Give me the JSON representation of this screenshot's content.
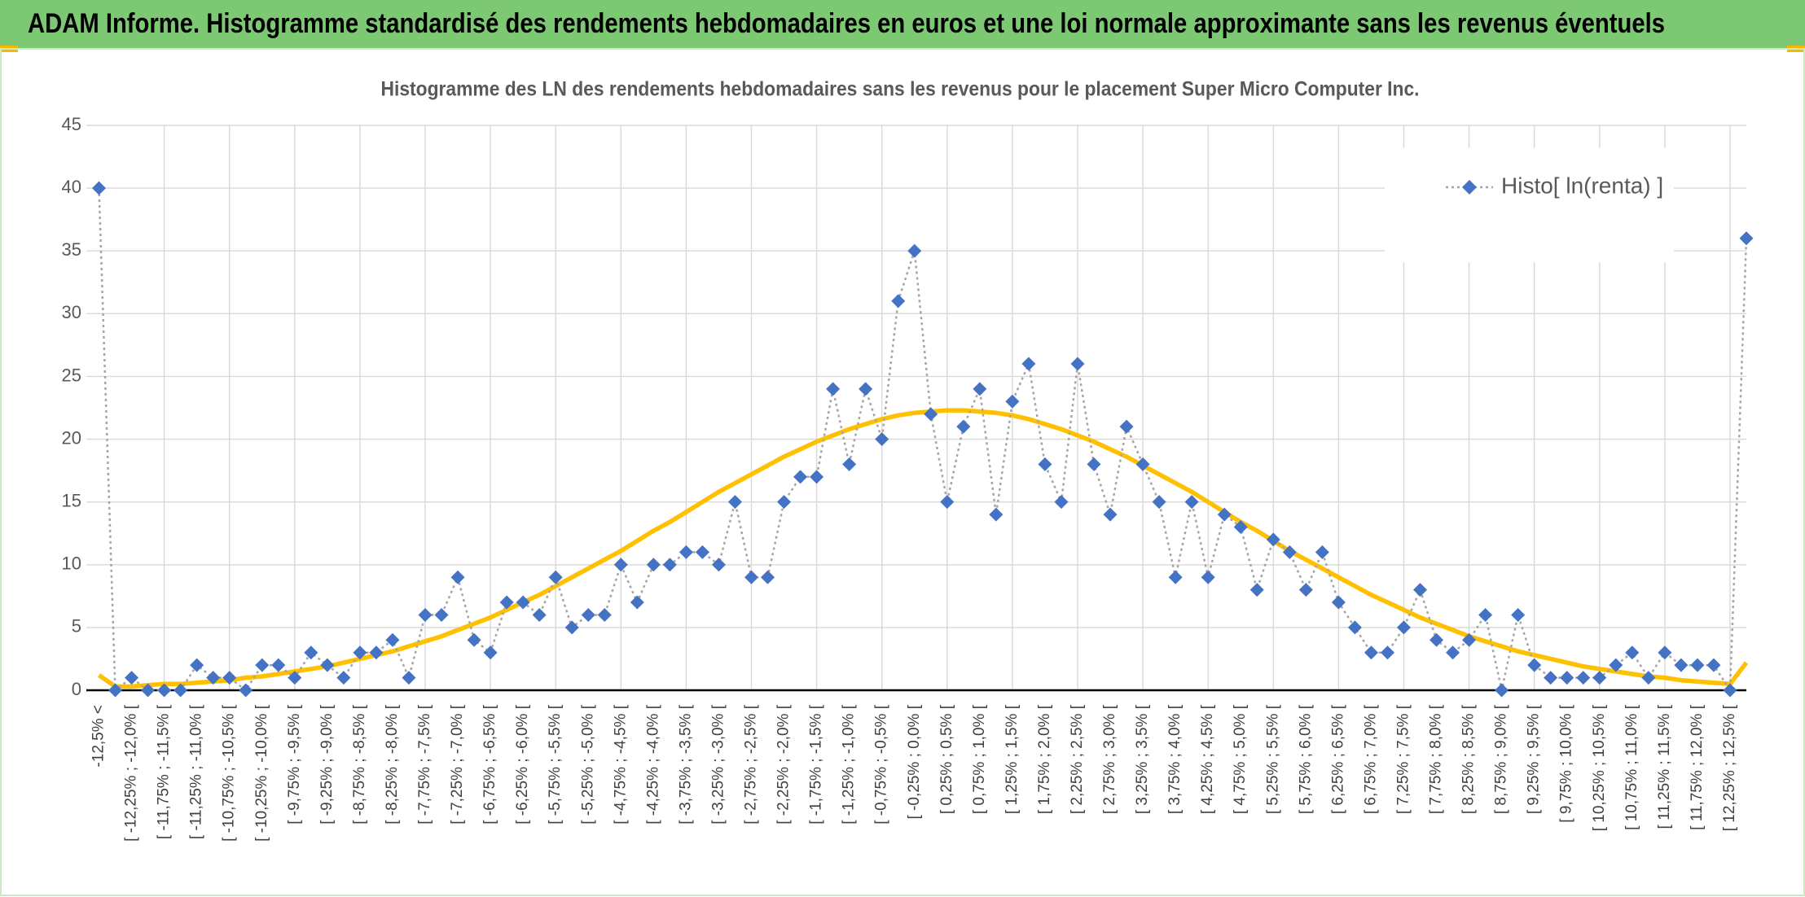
{
  "header": {
    "title": "ADAM Informe. Histogramme standardisé des rendements hebdomadaires en euros et une loi normale approximante sans les revenus éventuels"
  },
  "chart_data": {
    "type": "line",
    "title": "Histogramme des LN des rendements hebdomadaires sans les revenus pour le placement Super Micro Computer Inc.",
    "categories": [
      "-12,5% <",
      null,
      "[ -12,25% ; -12,0% [",
      null,
      "[ -11,75% ; -11,5% [",
      null,
      "[ -11,25% ; -11,0% [",
      null,
      "[ -10,75% ; -10,5% [",
      null,
      "[ -10,25% ; -10,0% [",
      null,
      "[ -9,75% ; -9,5% [",
      null,
      "[ -9,25% ; -9,0% [",
      null,
      "[ -8,75% ; -8,5% [",
      null,
      "[ -8,25% ; -8,0% [",
      null,
      "[ -7,75% ; -7,5% [",
      null,
      "[ -7,25% ; -7,0% [",
      null,
      "[ -6,75% ; -6,5% [",
      null,
      "[ -6,25% ; -6,0% [",
      null,
      "[ -5,75% ; -5,5% [",
      null,
      "[ -5,25% ; -5,0% [",
      null,
      "[ -4,75% ; -4,5% [",
      null,
      "[ -4,25% ; -4,0% [",
      null,
      "[ -3,75% ; -3,5% [",
      null,
      "[ -3,25% ; -3,0% [",
      null,
      "[ -2,75% ; -2,5% [",
      null,
      "[ -2,25% ; -2,0% [",
      null,
      "[ -1,75% ; -1,5% [",
      null,
      "[ -1,25% ; -1,0% [",
      null,
      "[ -0,75% ; -0,5% [",
      null,
      "[ -0,25% ; 0,0% [",
      null,
      "[ 0,25% ; 0,5% [",
      null,
      "[ 0,75% ; 1,0% [",
      null,
      "[ 1,25% ; 1,5% [",
      null,
      "[ 1,75% ; 2,0% [",
      null,
      "[ 2,25% ; 2,5% [",
      null,
      "[ 2,75% ; 3,0% [",
      null,
      "[ 3,25% ; 3,5% [",
      null,
      "[ 3,75% ; 4,0% [",
      null,
      "[ 4,25% ; 4,5% [",
      null,
      "[ 4,75% ; 5,0% [",
      null,
      "[ 5,25% ; 5,5% [",
      null,
      "[ 5,75% ; 6,0% [",
      null,
      "[ 6,25% ; 6,5% [",
      null,
      "[ 6,75% ; 7,0% [",
      null,
      "[ 7,25% ; 7,5% [",
      null,
      "[ 7,75% ; 8,0% [",
      null,
      "[ 8,25% ; 8,5% [",
      null,
      "[ 8,75% ; 9,0% [",
      null,
      "[ 9,25% ; 9,5% [",
      null,
      "[ 9,75% ; 10,0% [",
      null,
      "[ 10,25% ; 10,5% [",
      null,
      "[ 10,75% ; 11,0% [",
      null,
      "[ 11,25% ; 11,5% [",
      null,
      "[ 11,75% ; 12,0% [",
      null,
      "[ 12,25% ; 12,5% [",
      null
    ],
    "series": [
      {
        "name": "Histo[ ln(renta) ]",
        "color": "#4472c4",
        "values": [
          40,
          0,
          1,
          0,
          0,
          0,
          2,
          1,
          1,
          0,
          2,
          2,
          1,
          3,
          2,
          1,
          3,
          3,
          4,
          1,
          6,
          6,
          9,
          4,
          3,
          7,
          7,
          6,
          9,
          5,
          6,
          6,
          10,
          7,
          10,
          10,
          11,
          11,
          10,
          15,
          9,
          9,
          15,
          17,
          17,
          24,
          18,
          24,
          20,
          31,
          35,
          22,
          15,
          21,
          24,
          14,
          23,
          26,
          18,
          15,
          26,
          18,
          14,
          21,
          18,
          15,
          9,
          15,
          9,
          14,
          13,
          8,
          12,
          11,
          8,
          11,
          7,
          5,
          3,
          3,
          5,
          8,
          4,
          3,
          4,
          6,
          0,
          6,
          2,
          1,
          1,
          1,
          1,
          2,
          3,
          1,
          3,
          2,
          2,
          2,
          0,
          36
        ]
      },
      {
        "color": "#ffc000",
        "values": [
          1.2,
          0.3,
          0.3,
          0.4,
          0.5,
          0.5,
          0.6,
          0.7,
          0.8,
          1.0,
          1.1,
          1.3,
          1.5,
          1.7,
          1.9,
          2.2,
          2.5,
          2.8,
          3.1,
          3.5,
          3.9,
          4.3,
          4.8,
          5.3,
          5.8,
          6.4,
          7.0,
          7.6,
          8.3,
          9.0,
          9.7,
          10.4,
          11.1,
          11.9,
          12.7,
          13.4,
          14.2,
          15.0,
          15.8,
          16.5,
          17.2,
          17.9,
          18.6,
          19.2,
          19.8,
          20.3,
          20.8,
          21.2,
          21.6,
          21.9,
          22.1,
          22.2,
          22.3,
          22.3,
          22.2,
          22.1,
          21.9,
          21.6,
          21.2,
          20.8,
          20.3,
          19.8,
          19.2,
          18.6,
          17.9,
          17.2,
          16.5,
          15.8,
          15.0,
          14.2,
          13.4,
          12.7,
          11.9,
          11.1,
          10.4,
          9.7,
          9.0,
          8.3,
          7.6,
          7.0,
          6.4,
          5.8,
          5.3,
          4.8,
          4.3,
          3.9,
          3.5,
          3.1,
          2.8,
          2.5,
          2.2,
          1.9,
          1.7,
          1.5,
          1.3,
          1.1,
          1.0,
          0.8,
          0.7,
          0.6,
          0.5,
          2.2
        ]
      }
    ],
    "ylim": [
      0,
      45
    ],
    "yticks": [
      0,
      5,
      10,
      15,
      20,
      25,
      30,
      35,
      40,
      45
    ],
    "grid": true,
    "legend": "top-right"
  }
}
